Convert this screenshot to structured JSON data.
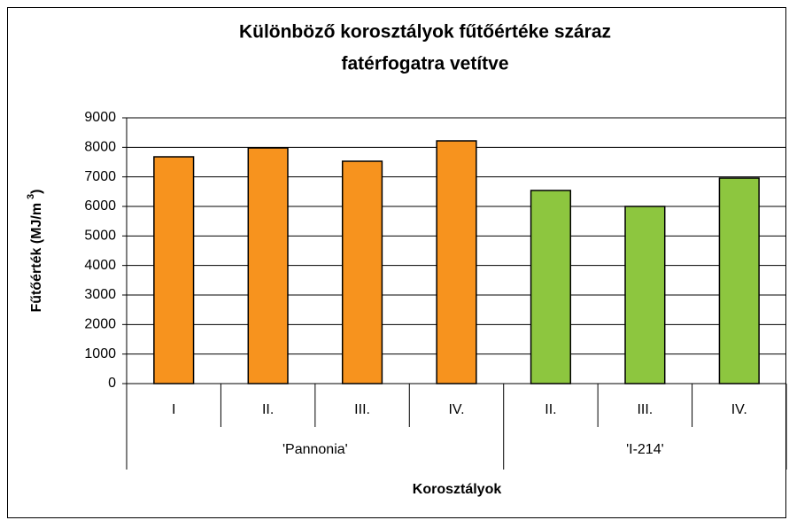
{
  "chart_data": {
    "type": "bar",
    "title_lines": [
      "Különböző korosztályok fűtőértéke száraz",
      "fatérfogatra vetítve"
    ],
    "y_label": "Fűtőérték (MJ/m",
    "y_label_sup": "3",
    "y_label_end": ")",
    "x_label": "Korosztályok",
    "groups": [
      {
        "name": "'Pannonia'",
        "color": "#f7931e",
        "categories": [
          "I",
          "II.",
          "III.",
          "IV."
        ],
        "values": [
          7680,
          7980,
          7530,
          8220
        ]
      },
      {
        "name": "'I-214'",
        "color": "#8dc63f",
        "categories": [
          "II.",
          "III.",
          "IV."
        ],
        "values": [
          6540,
          6000,
          6960
        ]
      }
    ],
    "ylim": [
      0,
      9000
    ],
    "yticks": [
      0,
      1000,
      2000,
      3000,
      4000,
      5000,
      6000,
      7000,
      8000,
      9000
    ],
    "grid": true
  }
}
